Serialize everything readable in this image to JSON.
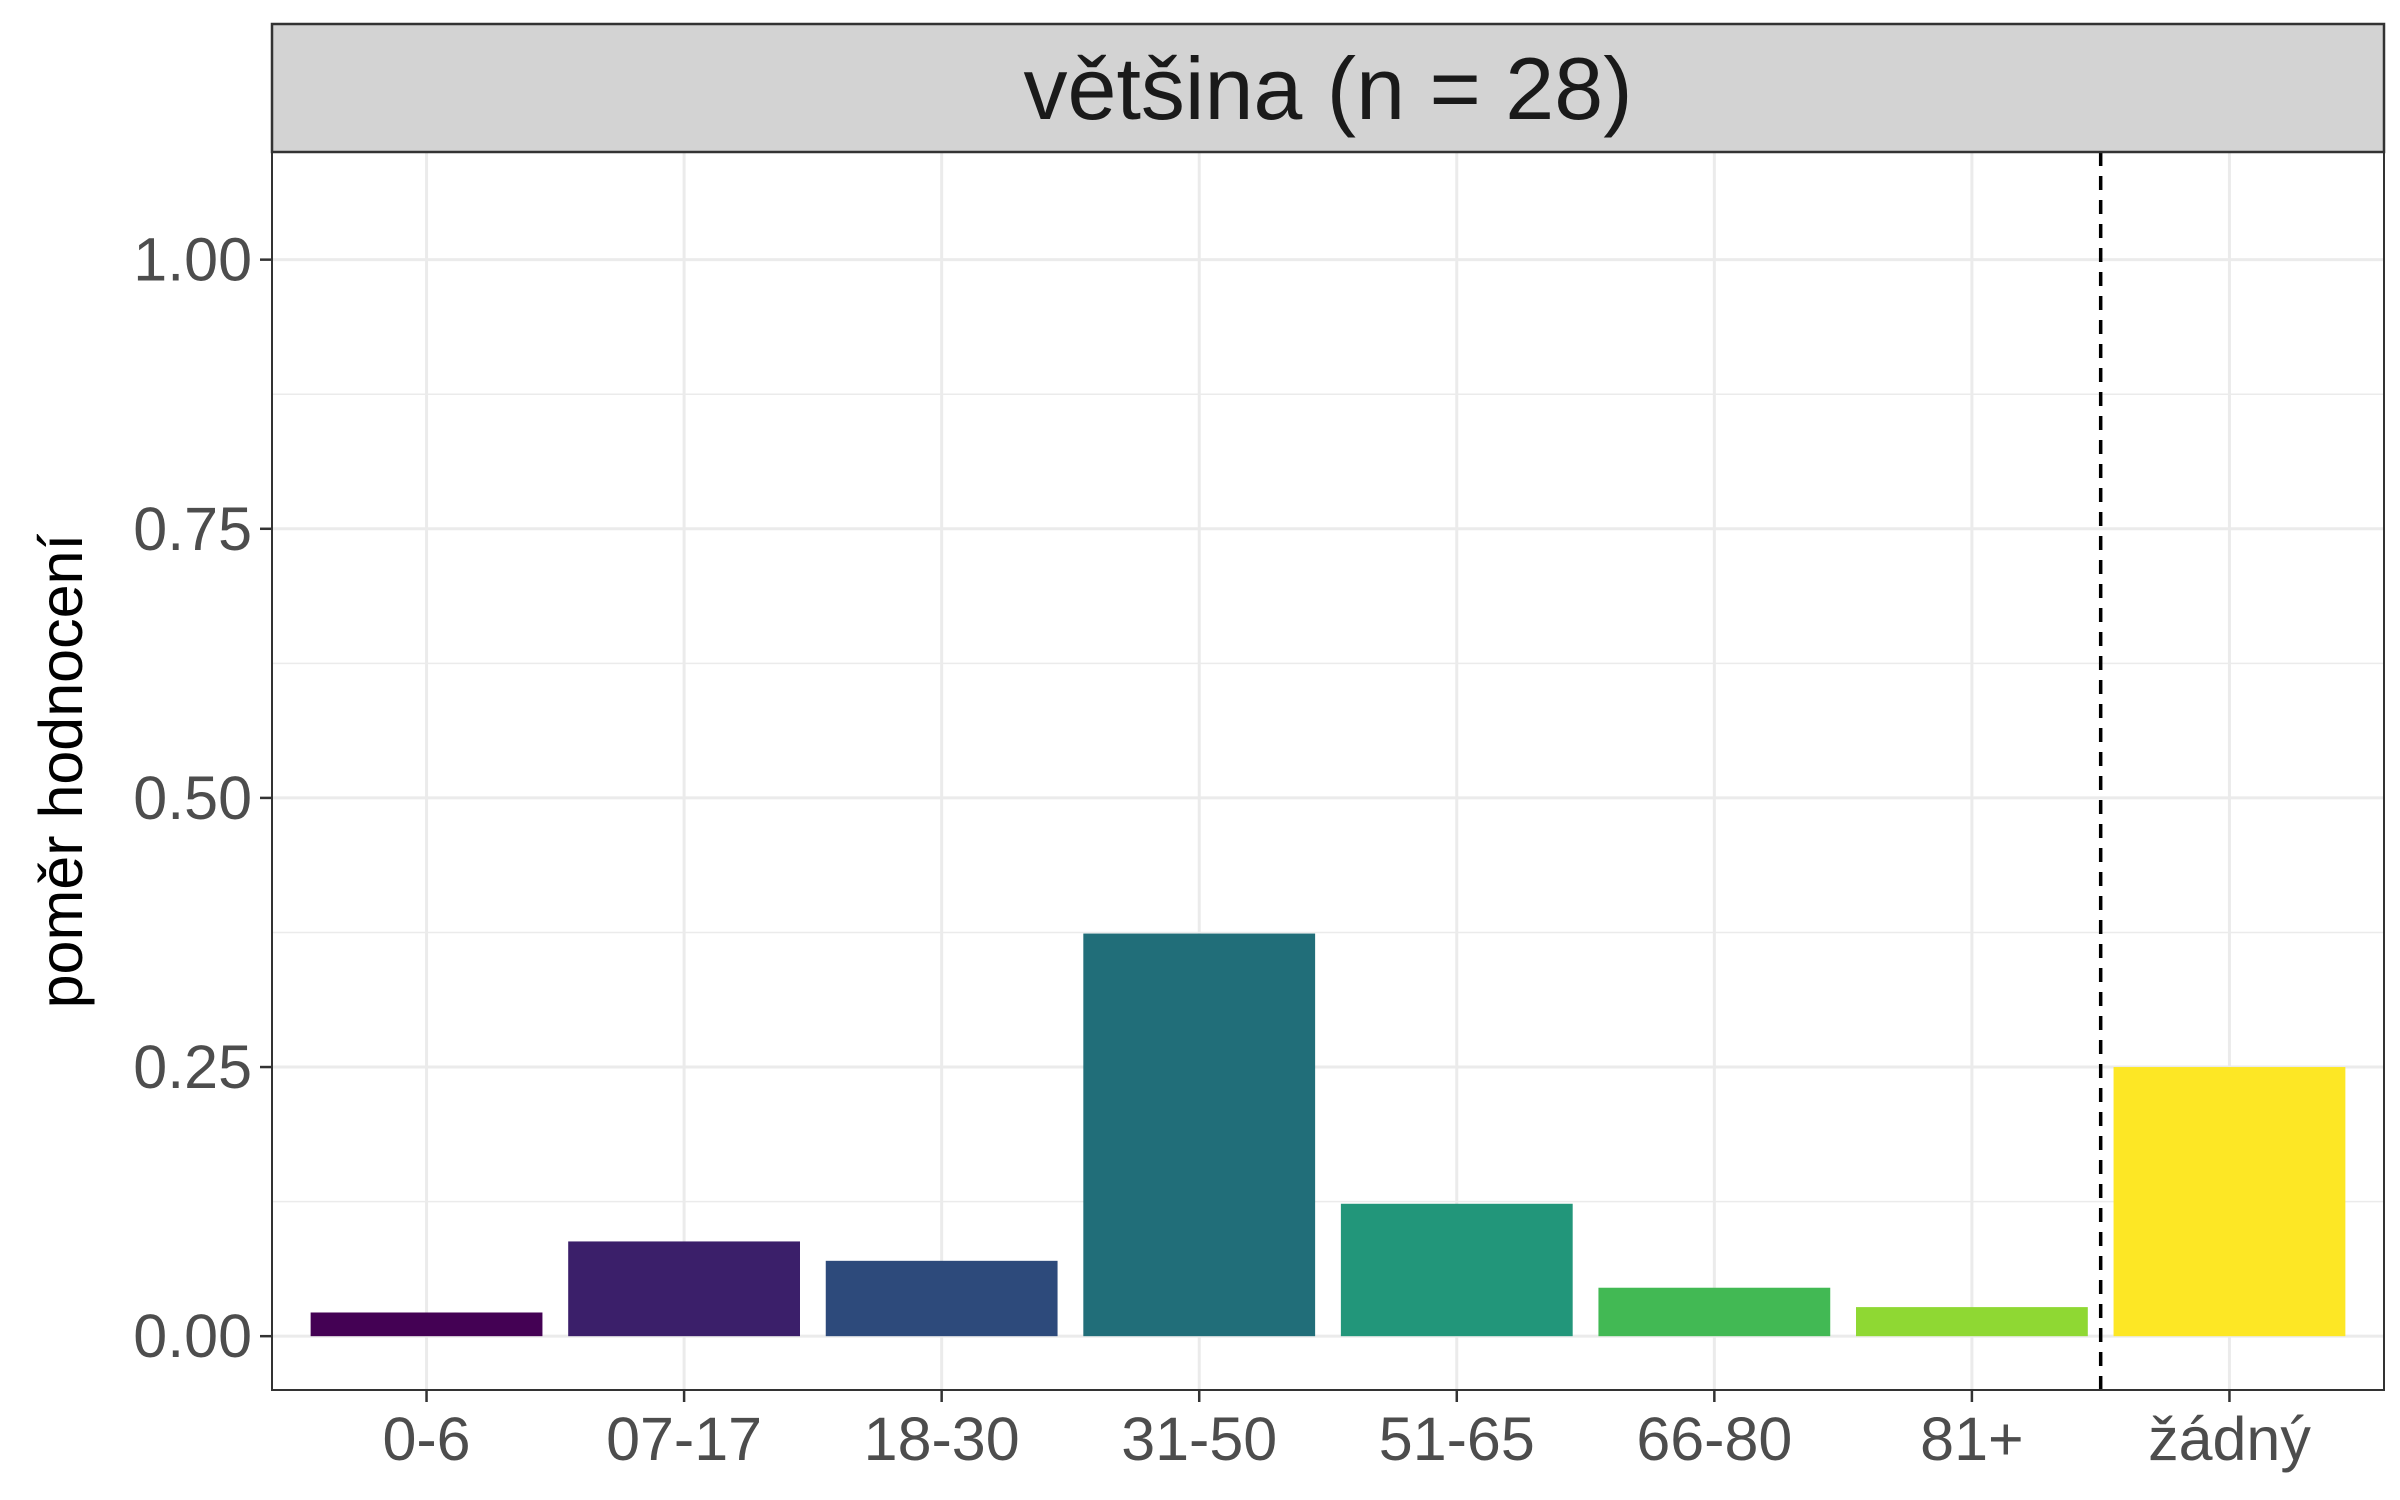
{
  "chart_data": {
    "type": "bar",
    "facet_title": "většina (n = 28)",
    "ylabel": "poměr hodnocení",
    "xlabel": "",
    "categories": [
      "0-6",
      "07-17",
      "18-30",
      "31-50",
      "51-65",
      "66-80",
      "81+",
      "žádný"
    ],
    "values": [
      0.022,
      0.088,
      0.07,
      0.374,
      0.123,
      0.045,
      0.027,
      0.25
    ],
    "colors": [
      "#440154",
      "#3b1f6a",
      "#2d4a7b",
      "#216e79",
      "#22967a",
      "#42b954",
      "#8fd833",
      "#fde725"
    ],
    "ylim": [
      -0.05,
      1.1
    ],
    "yticks": [
      0.0,
      0.25,
      0.5,
      0.75,
      1.0
    ],
    "ytick_labels": [
      "0.00",
      "0.25",
      "0.50",
      "0.75",
      "1.00"
    ],
    "reference_line": {
      "style": "dashed",
      "position": "between 81+ and žádný"
    },
    "grid": true,
    "legend": "none"
  }
}
